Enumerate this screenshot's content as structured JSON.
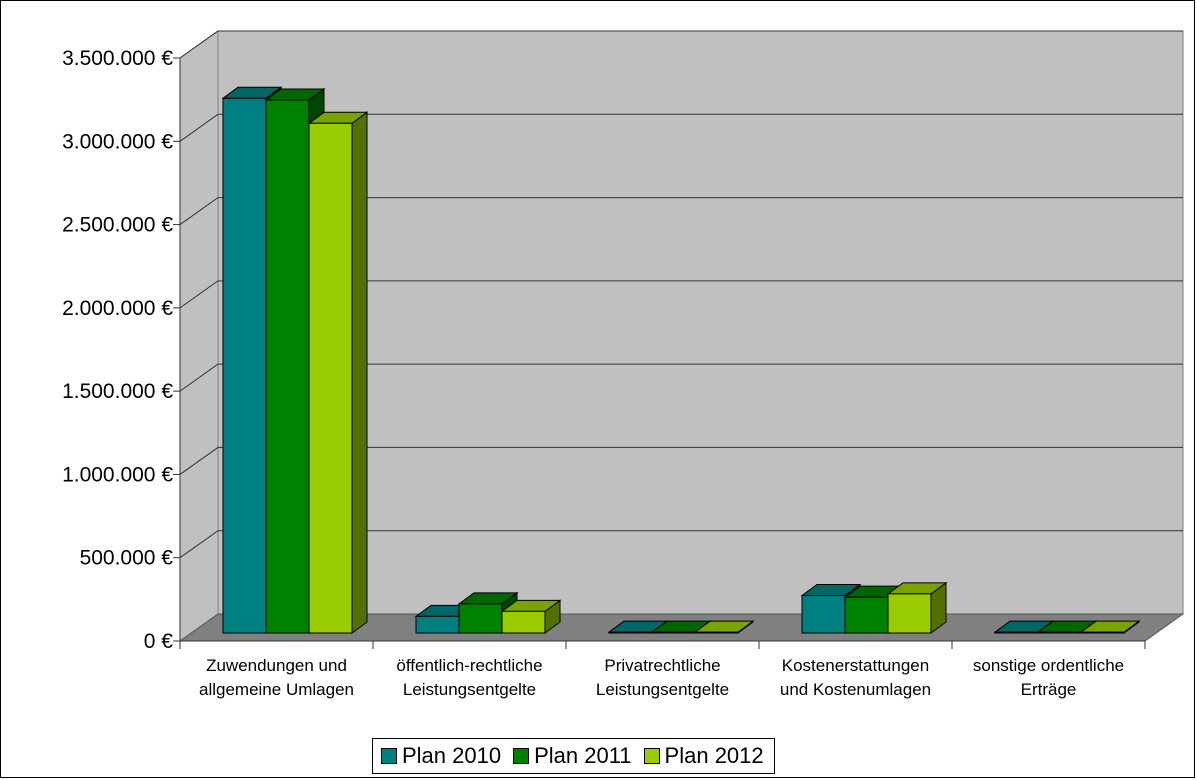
{
  "chart_data": {
    "type": "bar",
    "title": "",
    "xlabel": "",
    "ylabel": "",
    "ylim": [
      0,
      3500000
    ],
    "yticks": [
      0,
      500000,
      1000000,
      1500000,
      2000000,
      2500000,
      3000000,
      3500000
    ],
    "ytick_labels": [
      "0 €",
      "500.000 €",
      "1.000.000 €",
      "1.500.000 €",
      "2.000.000 €",
      "2.500.000 €",
      "3.000.000 €",
      "3.500.000 €"
    ],
    "grid": true,
    "legend_position": "bottom",
    "categories": [
      [
        "Zuwendungen und",
        "allgemeine Umlagen"
      ],
      [
        "öffentlich-rechtliche",
        "Leistungsentgelte"
      ],
      [
        "Privatrechtliche",
        "Leistungsentgelte"
      ],
      [
        "Kostenerstattungen",
        "und Kostenumlagen"
      ],
      [
        "sonstige ordentliche",
        "Erträge"
      ]
    ],
    "series": [
      {
        "name": "Plan 2010",
        "color": "#008080",
        "values": [
          3210000,
          100000,
          5000,
          225000,
          5000
        ]
      },
      {
        "name": "Plan 2011",
        "color": "#008000",
        "values": [
          3200000,
          175000,
          5000,
          215000,
          5000
        ]
      },
      {
        "name": "Plan 2012",
        "color": "#99cc00",
        "values": [
          3060000,
          130000,
          5000,
          235000,
          5000
        ]
      }
    ]
  }
}
